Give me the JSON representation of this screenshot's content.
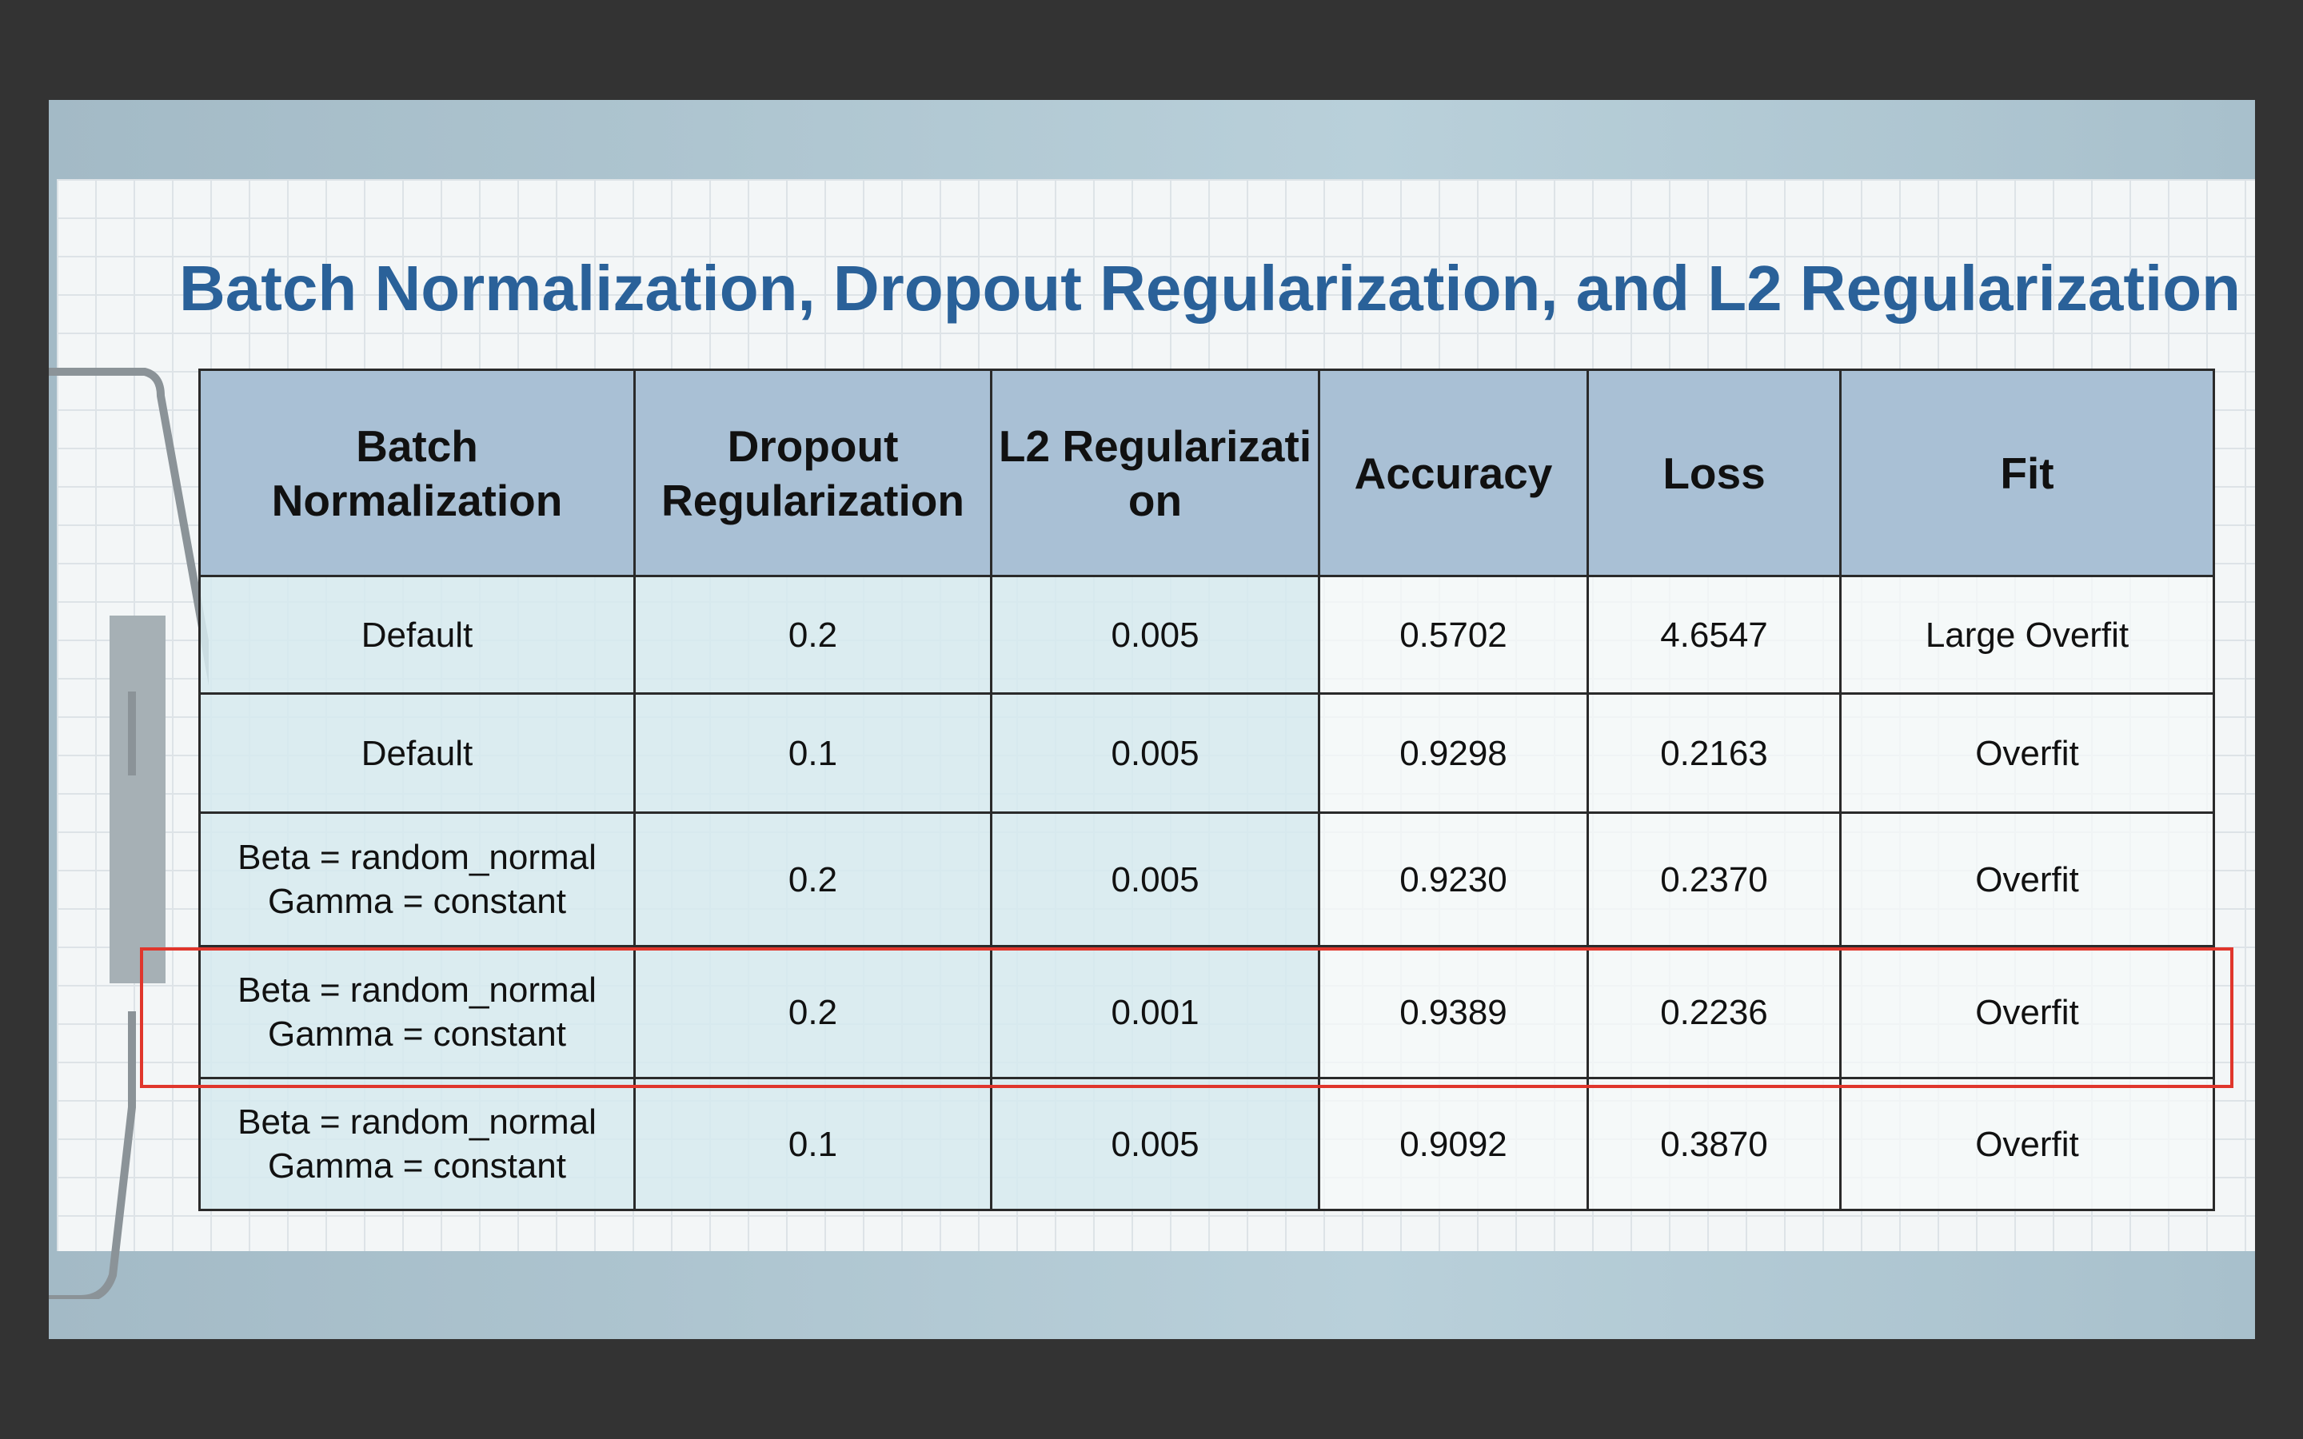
{
  "title": "Batch Normalization, Dropout Regularization, and L2 Regularization",
  "table": {
    "header": [
      "Batch Normalization",
      "Dropout Regularization",
      "L2 Regularization",
      "Accuracy",
      "Loss",
      "Fit"
    ],
    "rows": [
      [
        "Default",
        "0.2",
        "0.005",
        "0.5702",
        "4.6547",
        "Large Overfit"
      ],
      [
        "Default",
        "0.1",
        "0.005",
        "0.9298",
        "0.2163",
        "Overfit"
      ],
      [
        "Beta = random_normal\nGamma = constant",
        "0.2",
        "0.005",
        "0.9230",
        "0.2370",
        "Overfit"
      ],
      [
        "Beta = random_normal\nGamma = constant",
        "0.2",
        "0.001",
        "0.9389",
        "0.2236",
        "Overfit"
      ],
      [
        "Beta = random_normal\nGamma = constant",
        "0.1",
        "0.005",
        "0.9092",
        "0.3870",
        "Overfit"
      ]
    ]
  }
}
